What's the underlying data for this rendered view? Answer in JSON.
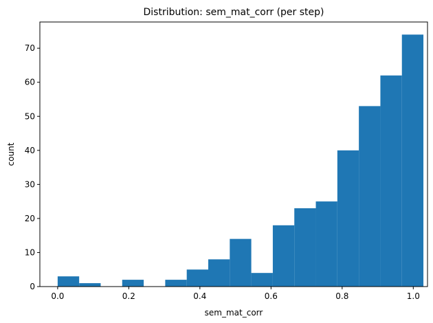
{
  "chart_data": {
    "type": "bar",
    "title": "Distribution: sem_mat_corr (per step)",
    "xlabel": "sem_mat_corr",
    "ylabel": "count",
    "xlim": [
      -0.05,
      1.04
    ],
    "ylim": [
      0,
      77.7
    ],
    "grid": false,
    "bar_color": "#1f77b4",
    "bins": [
      0.0,
      0.0605,
      0.121,
      0.1815,
      0.242,
      0.3025,
      0.363,
      0.4235,
      0.484,
      0.5445,
      0.605,
      0.6655,
      0.726,
      0.7865,
      0.847,
      0.9075,
      0.968
    ],
    "bin_width": 0.0605,
    "values": [
      3,
      1,
      0,
      2,
      0,
      2,
      5,
      8,
      14,
      4,
      18,
      23,
      25,
      40,
      53,
      62,
      74
    ],
    "xticks": [
      0.0,
      0.2,
      0.4,
      0.6,
      0.8,
      1.0
    ],
    "xtick_labels": [
      "0.0",
      "0.2",
      "0.4",
      "0.6",
      "0.8",
      "1.0"
    ],
    "yticks": [
      0,
      10,
      20,
      30,
      40,
      50,
      60,
      70
    ],
    "ytick_labels": [
      "0",
      "10",
      "20",
      "30",
      "40",
      "50",
      "60",
      "70"
    ]
  }
}
